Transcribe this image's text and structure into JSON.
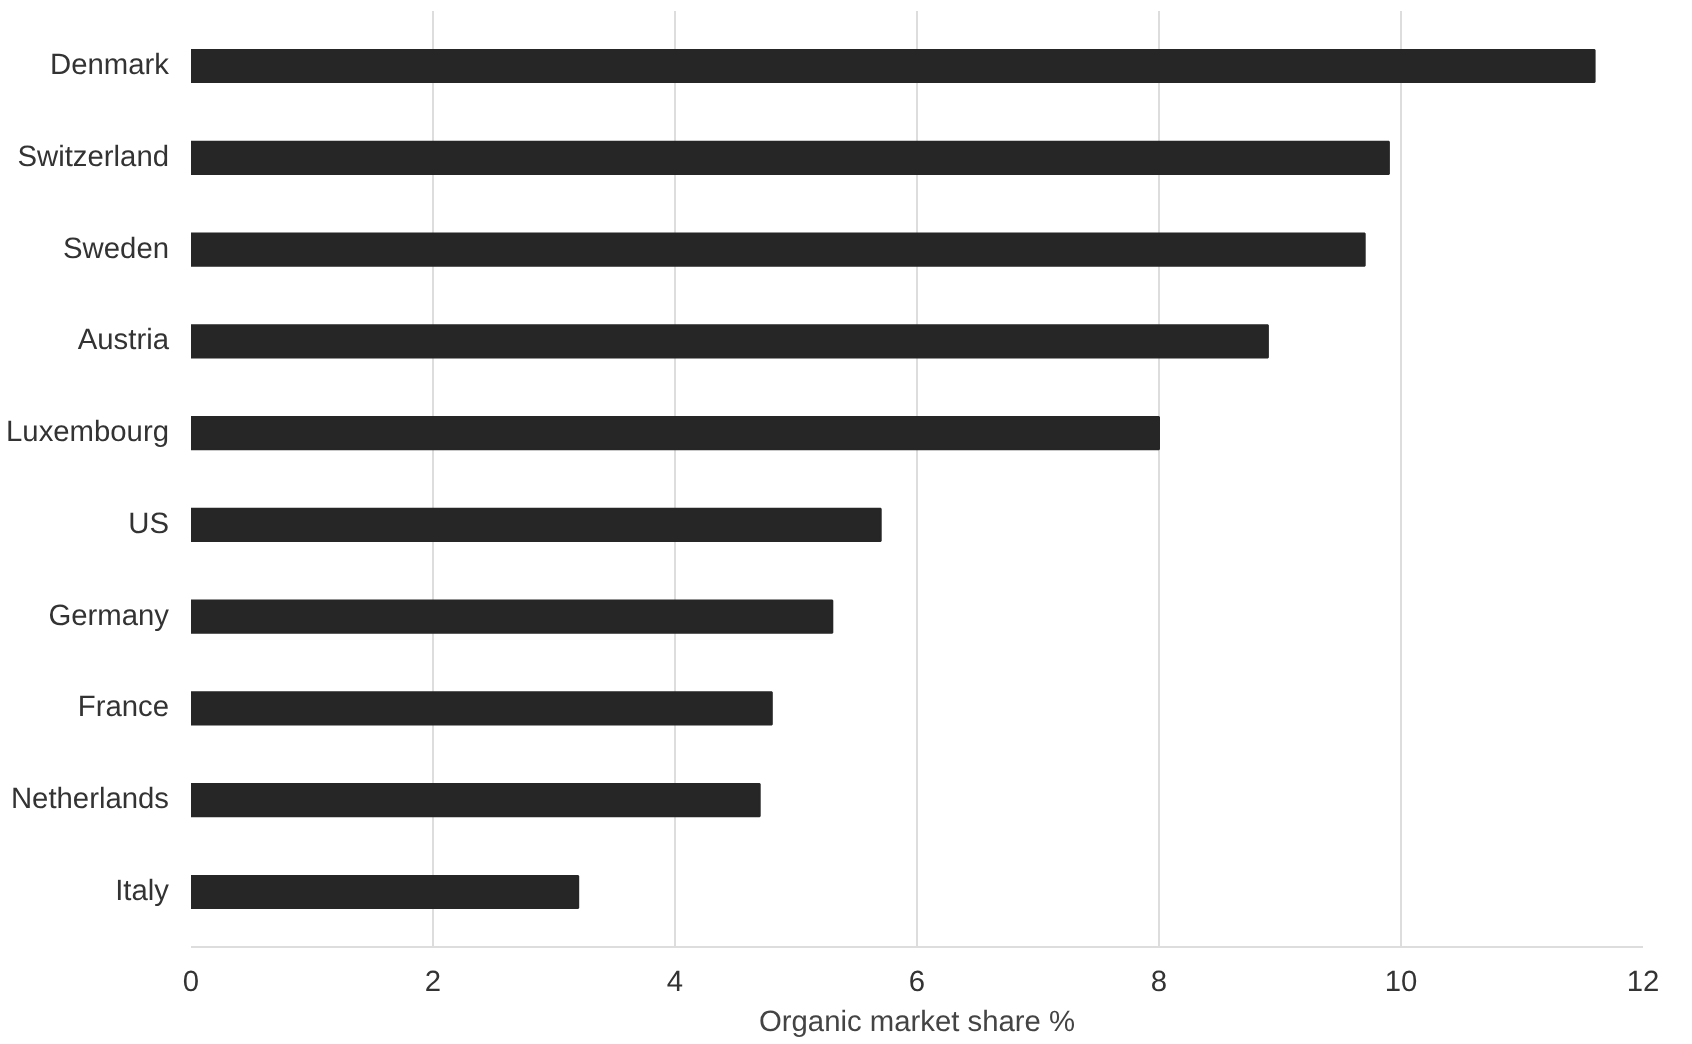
{
  "chart_data": {
    "type": "bar",
    "orientation": "horizontal",
    "xlabel": "Organic market share %",
    "categories": [
      "Denmark",
      "Switzerland",
      "Sweden",
      "Austria",
      "Luxembourg",
      "US",
      "Germany",
      "France",
      "Netherlands",
      "Italy"
    ],
    "values": [
      11.6,
      9.9,
      9.7,
      8.9,
      8.0,
      5.7,
      5.3,
      4.8,
      4.7,
      3.2
    ],
    "color": "#262626",
    "xlim": [
      0,
      12
    ],
    "xticks": [
      0,
      2,
      4,
      6,
      8,
      10,
      12
    ],
    "grid": "x"
  }
}
